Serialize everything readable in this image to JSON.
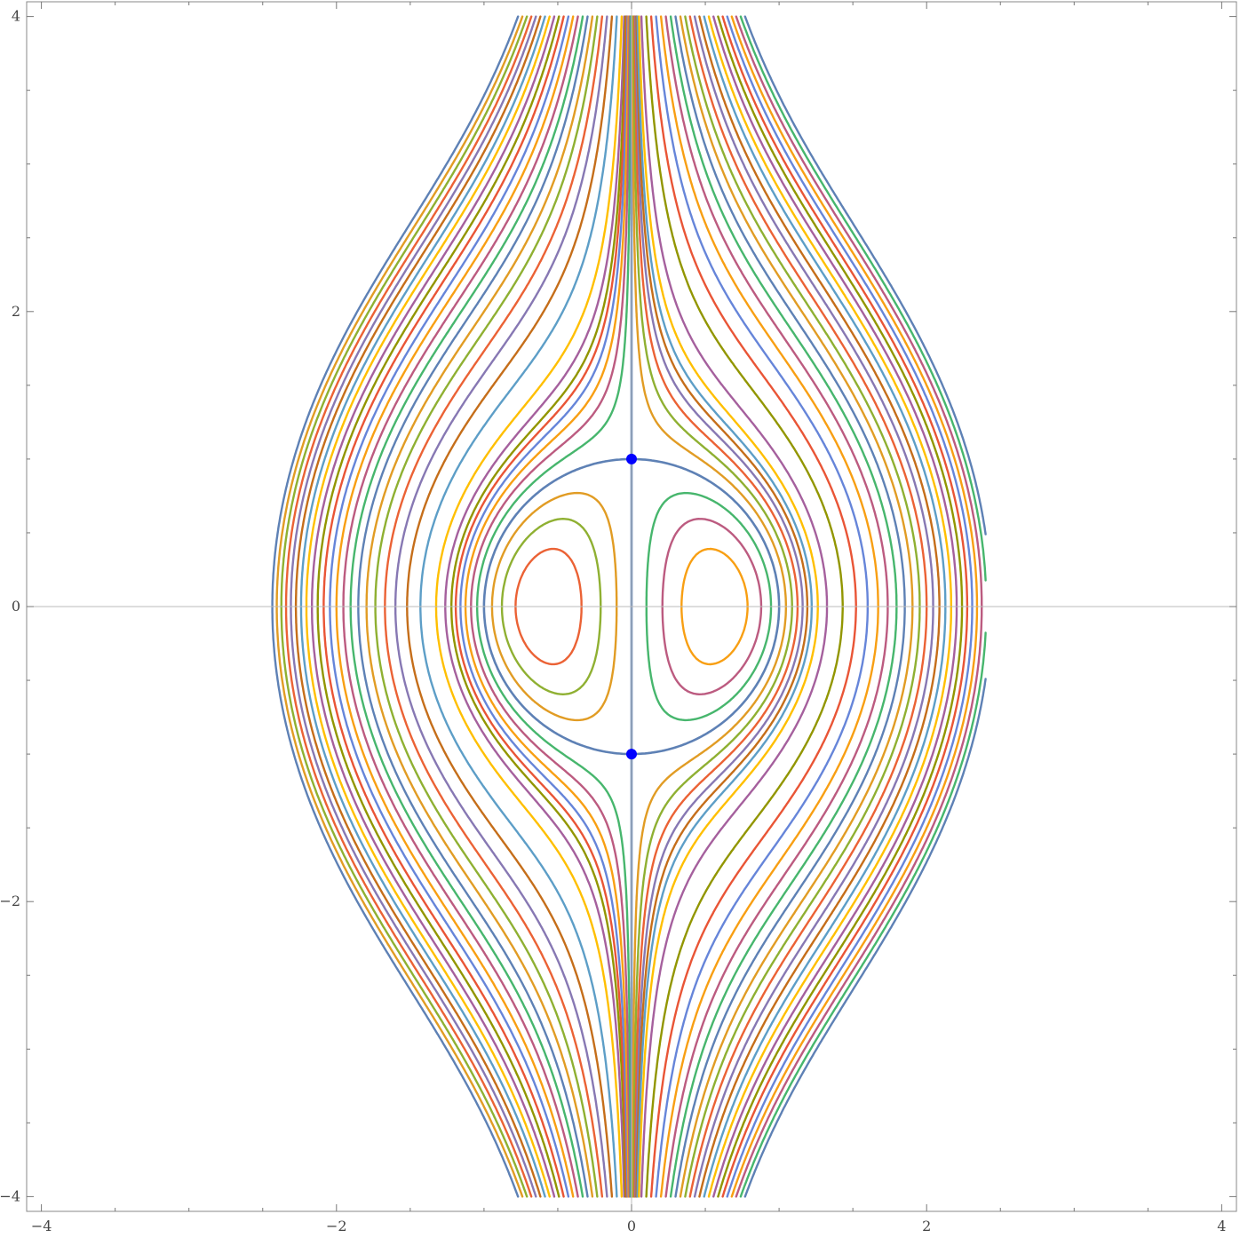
{
  "chart_data": {
    "type": "contour",
    "title": "",
    "xlabel": "",
    "ylabel": "",
    "xlim": [
      -4.1,
      4.1
    ],
    "ylim": [
      -4.1,
      4.1
    ],
    "grid": false,
    "legend": "none",
    "x_ticks": [
      {
        "value": -4,
        "label": "−4"
      },
      {
        "value": -2,
        "label": "−2"
      },
      {
        "value": 0,
        "label": "0"
      },
      {
        "value": 2,
        "label": "2"
      },
      {
        "value": 4,
        "label": "4"
      }
    ],
    "y_ticks": [
      {
        "value": 4,
        "label": "4"
      },
      {
        "value": 2,
        "label": "2"
      },
      {
        "value": 0,
        "label": "0"
      },
      {
        "value": -2,
        "label": "−2"
      },
      {
        "value": -4,
        "label": "−4"
      }
    ],
    "minor_tick_step": 0.5,
    "field": {
      "expression": "(x^2 + y^2 - 1) * x",
      "domain_x": [
        -2.6,
        2.4
      ],
      "domain_y": [
        -4.0,
        4.0
      ],
      "contour_levels": [
        -12,
        -11.5,
        -11,
        -10.5,
        -10,
        -9.5,
        -9,
        -8.5,
        -8,
        -7.5,
        -7,
        -6.5,
        -6,
        -5.5,
        -5,
        -4.5,
        -4,
        -3.5,
        -3,
        -2.5,
        -2,
        -1.5,
        -1,
        -0.75,
        -0.6,
        -0.5,
        -0.4,
        -0.3,
        -0.2,
        -0.1,
        0,
        0.1,
        0.2,
        0.3,
        0.4,
        0.5,
        0.6,
        0.75,
        1,
        1.5,
        2,
        2.5,
        3,
        3.5,
        4,
        4.5,
        5,
        5.5,
        6,
        6.5,
        7,
        7.5,
        8,
        8.5,
        9,
        9.5,
        10,
        10.5,
        11,
        11.5,
        12
      ]
    },
    "critical_points": [
      {
        "x": 0,
        "y": 1
      },
      {
        "x": 0,
        "y": -1
      }
    ],
    "colors": {
      "palette": [
        "#5e81b5",
        "#e19c24",
        "#8fb032",
        "#eb6235",
        "#8778b3",
        "#c56e1a",
        "#5d9ec7",
        "#ffbf00",
        "#a5609d",
        "#929600",
        "#e95536",
        "#6685d9",
        "#f89f13",
        "#bc5b80",
        "#47b66d"
      ],
      "critical_point": "#0000ff",
      "axis": "#bbbbbb",
      "frame": "#888888"
    }
  }
}
